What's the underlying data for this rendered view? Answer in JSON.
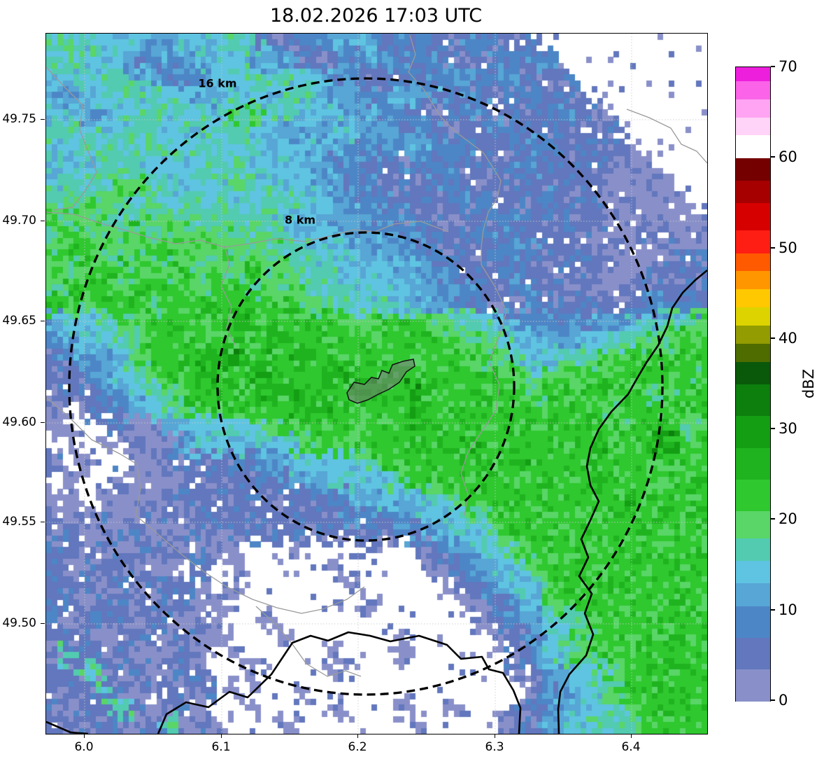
{
  "title": "18.02.2026 17:03 UTC",
  "axes": {
    "x_ticks": [
      "6.0",
      "6.1",
      "6.2",
      "6.3",
      "6.4"
    ],
    "y_ticks": [
      "49.75",
      "49.70",
      "49.65",
      "49.60",
      "49.55",
      "49.50"
    ]
  },
  "range_rings": [
    {
      "label": "16 km"
    },
    {
      "label": "8 km"
    }
  ],
  "colorbar": {
    "label": "dBZ",
    "ticks": [
      "70",
      "60",
      "50",
      "40",
      "30",
      "20",
      "10",
      "0"
    ],
    "stops": [
      {
        "v": 0,
        "c": "#8990c9"
      },
      {
        "v": 3.5,
        "c": "#6277bd"
      },
      {
        "v": 7,
        "c": "#4d86c6"
      },
      {
        "v": 10.5,
        "c": "#57a6d5"
      },
      {
        "v": 13,
        "c": "#5fc4e1"
      },
      {
        "v": 15.5,
        "c": "#52cbb0"
      },
      {
        "v": 18,
        "c": "#59d667"
      },
      {
        "v": 21,
        "c": "#2fc82f"
      },
      {
        "v": 24.5,
        "c": "#1fb41f"
      },
      {
        "v": 28,
        "c": "#149e14"
      },
      {
        "v": 31.5,
        "c": "#0d7f0d"
      },
      {
        "v": 35,
        "c": "#0a590a"
      },
      {
        "v": 37.5,
        "c": "#4f6c00"
      },
      {
        "v": 39.5,
        "c": "#939c00"
      },
      {
        "v": 41.5,
        "c": "#dcd300"
      },
      {
        "v": 43.5,
        "c": "#ffc800"
      },
      {
        "v": 45.5,
        "c": "#ff9600"
      },
      {
        "v": 47.5,
        "c": "#ff5a00"
      },
      {
        "v": 49.5,
        "c": "#ff1e14"
      },
      {
        "v": 52,
        "c": "#d60000"
      },
      {
        "v": 55,
        "c": "#a60000"
      },
      {
        "v": 57.5,
        "c": "#740000"
      },
      {
        "v": 60,
        "c": "#ffffff"
      },
      {
        "v": 62.5,
        "c": "#ffd4f8"
      },
      {
        "v": 64.5,
        "c": "#ffa4f2"
      },
      {
        "v": 66.5,
        "c": "#fb64e8"
      },
      {
        "v": 68.5,
        "c": "#ee1edd"
      }
    ]
  },
  "chart_data": {
    "type": "heatmap",
    "title": "18.02.2026 17:03 UTC",
    "value_units": "dBZ",
    "colorbar_range": [
      0,
      70
    ],
    "colorbar_ticks": [
      0,
      10,
      20,
      30,
      40,
      50,
      60,
      70
    ],
    "x_ticks": [
      6.0,
      6.1,
      6.2,
      6.3,
      6.4
    ],
    "y_ticks": [
      49.5,
      49.55,
      49.6,
      49.65,
      49.7,
      49.75
    ],
    "x_range": [
      5.972,
      6.455
    ],
    "y_range": [
      49.445,
      49.793
    ],
    "range_rings_km": [
      8,
      16
    ],
    "ring_center": {
      "lon": 6.205,
      "lat": 49.618
    },
    "grid": {
      "description": "Coarse 40x40 radar reflectivity field (row 0 = north, col 0 = west); chars map to dBZ via char_to_dbz; '.' = no echo",
      "level_order": "123456789AB",
      "char_to_dbz": {
        "1": 2,
        "2": 5,
        "3": 8,
        "4": 11,
        "5": 13.5,
        "6": 16.5,
        "7": 19.5,
        "8": 23,
        "9": 26.5,
        "A": 29.5,
        "B": 32.5
      },
      "char_to_color": {
        "1": "#8990c9",
        "2": "#6277bd",
        "3": "#4d86c6",
        "4": "#57a6d5",
        "5": "#5fc4e1",
        "6": "#52cbb0",
        "7": "#59d667",
        "8": "#2fc82f",
        "9": "#1fb41f",
        "A": "#149e14",
        "B": "#0d7f0d"
      },
      "rows": [
        [
          "6665554455",
          "5662233444",
          "3332233222",
          ".........."
        ],
        [
          "6655533445",
          "5544422334",
          "4333222333",
          "3........."
        ],
        [
          "5556644333",
          "5566655332",
          "2333443332",
          "22........"
        ],
        [
          "4455666554",
          "4555664443",
          "3443332233",
          "222......."
        ],
        [
          "5544556665",
          "5776655544",
          "3332233222",
          "3322......"
        ],
        [
          "6665566556",
          "6655444554",
          "4333222332",
          "22222....."
        ],
        [
          "5566666655",
          "6665554433",
          "3443332223",
          "322221...."
        ],
        [
          "5556665556",
          "6655544333",
          "2233322233",
          "2222111..."
        ],
        [
          "5666776655",
          "5666554433",
          "2223322222",
          "22221111.."
        ],
        [
          "6677766566",
          "6566655443",
          "3222233222",
          "322211111."
        ],
        [
          "7777667766",
          "6666555443",
          "3322222332",
          "2222111111"
        ],
        [
          "7877787777",
          "7766655544",
          "4332223322",
          "2221112211"
        ],
        [
          "7887777877",
          "7777665554",
          "4433222333",
          "2222211122"
        ],
        [
          "8788877787",
          "7787766655",
          "5443322332",
          "2222112222"
        ],
        [
          "7888788887",
          "8877776655",
          "5544332233",
          "2221122222"
        ],
        [
          "8878887888",
          "8888877665",
          "6554433223",
          "2222223333"
        ],
        [
          "4556778888",
          "8998888877",
          "8887766543",
          "3334455667"
        ],
        [
          "3455678888",
          "8889988888",
          "8888877654",
          "4455667788"
        ],
        [
          "2344578889",
          "9A88899888",
          "8888887765",
          "5667788888"
        ],
        [
          "2234567889",
          "8899888998",
          "8888888876",
          "7788888887"
        ],
        [
          "2223456788",
          "8889998889",
          "98A8888887",
          "8888887788"
        ],
        [
          "1.22345678",
          "8888899888",
          "8898888888",
          "8887788888"
        ],
        [
          "11..211455",
          "5557888888",
          "8898888888",
          "8888888877"
        ],
        [
          ".1.1.21145",
          "5555578888",
          "8888898888",
          "8889888A88"
        ],
        [
          "2.1..11222",
          "2334455557",
          "8888888898",
          "8888888888"
        ],
        [
          ".1..211122",
          "2223344555",
          "5788888888",
          "8889888888"
        ],
        [
          "11.1211222",
          "2222223344",
          "5556788888",
          "8888898888"
        ],
        [
          "2122112212",
          "2222222233",
          "3455567888",
          "8888888988"
        ],
        [
          "2212221122",
          "1222222222",
          "2334555788",
          "8888888888"
        ],
        [
          "2221122212",
          "11...1...2",
          "..12345578",
          "8888888888"
        ],
        [
          "21222211.2",
          ".1.....1..",
          "...1234557",
          "8888888888"
        ],
        [
          "2221212221",
          ".1......1.",
          "....123455",
          "7888888888"
        ],
        [
          "2212221221",
          "1........1",
          ".....12345",
          "7888888888"
        ],
        [
          "2122212212",
          "1..1......",
          "......1234",
          "5678888888"
        ],
        [
          "2221122121",
          "1...1.....",
          ".1.....123",
          "5678888888"
        ],
        [
          "2622211221",
          ".1.....1..",
          ".1......23",
          "5678888888"
        ],
        [
          "2262121122",
          "..1....1..",
          "........12",
          "4456788888"
        ],
        [
          "2226212212",
          ".1...1....",
          ".........1",
          "3456788888"
        ],
        [
          "2122621221",
          "..1....1..",
          ".1..1...22",
          "3455678888"
        ],
        [
          "2212212612",
          "1...1.....",
          "..1....122",
          "4556678888"
        ]
      ]
    }
  }
}
